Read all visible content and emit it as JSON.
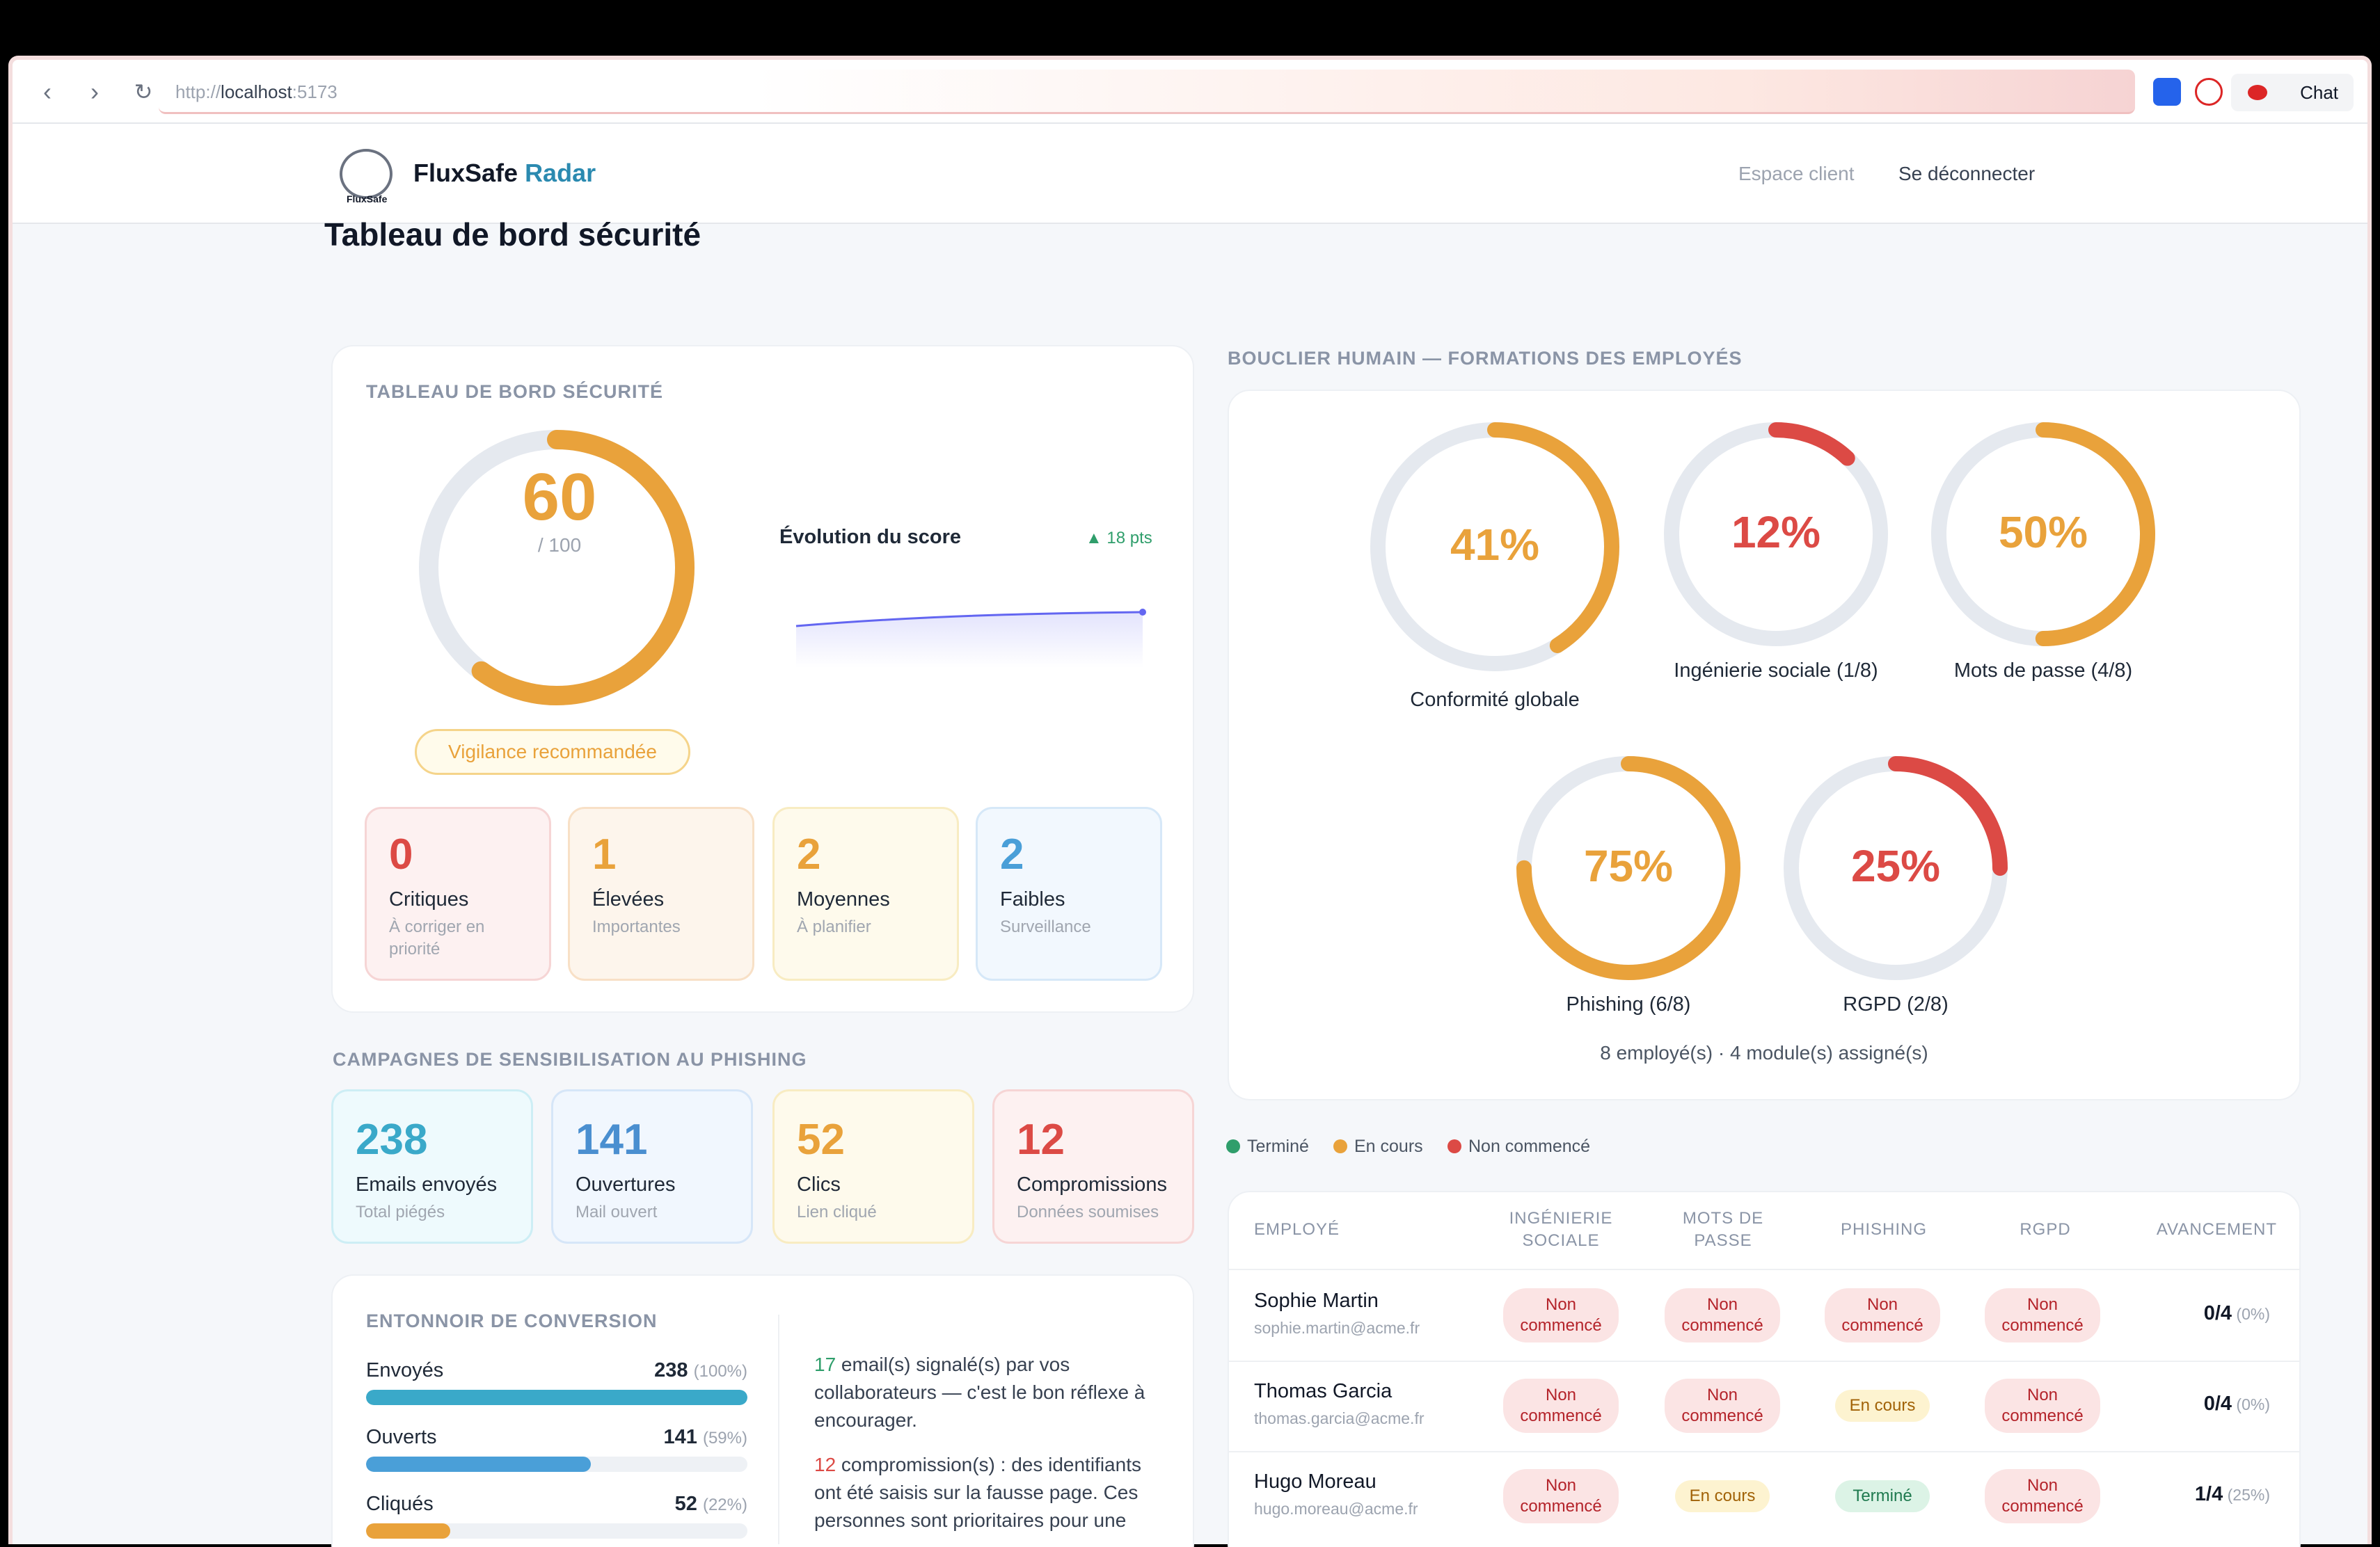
{
  "browser": {
    "url_scheme": "http://",
    "url_host": "localhost",
    "url_port": ":5173",
    "chat_label": "Chat"
  },
  "header": {
    "logo_text": "FluxSafe",
    "brand_main": "FluxSafe",
    "brand_accent": "Radar",
    "client_space": "Espace client",
    "logout": "Se déconnecter"
  },
  "page": {
    "title": "Tableau de bord sécurité"
  },
  "security": {
    "label": "TABLEAU DE BORD SÉCURITÉ",
    "score": "60",
    "score_max": "/ 100",
    "score_value": 60,
    "status": "Vigilance recommandée",
    "evolution_title": "Évolution du score",
    "evolution_delta": "▲ 18 pts",
    "severity": [
      {
        "count": "0",
        "title": "Critiques",
        "subtitle": "À corriger en priorité"
      },
      {
        "count": "1",
        "title": "Élevées",
        "subtitle": "Importantes"
      },
      {
        "count": "2",
        "title": "Moyennes",
        "subtitle": "À planifier"
      },
      {
        "count": "2",
        "title": "Faibles",
        "subtitle": "Surveillance"
      }
    ]
  },
  "campaigns": {
    "label": "CAMPAGNES DE SENSIBILISATION AU PHISHING",
    "stats": [
      {
        "count": "238",
        "title": "Emails envoyés",
        "subtitle": "Total piégés"
      },
      {
        "count": "141",
        "title": "Ouvertures",
        "subtitle": "Mail ouvert"
      },
      {
        "count": "52",
        "title": "Clics",
        "subtitle": "Lien cliqué"
      },
      {
        "count": "12",
        "title": "Compromissions",
        "subtitle": "Données soumises"
      }
    ]
  },
  "funnel": {
    "label": "ENTONNOIR DE CONVERSION",
    "rows": [
      {
        "label": "Envoyés",
        "value": "238",
        "pct": "(100%)",
        "fraction": 1.0
      },
      {
        "label": "Ouverts",
        "value": "141",
        "pct": "(59%)",
        "fraction": 0.59
      },
      {
        "label": "Cliqués",
        "value": "52",
        "pct": "(22%)",
        "fraction": 0.22
      }
    ],
    "insight1_num": "17",
    "insight1_text": " email(s) signalé(s) par vos collaborateurs — c'est le bon réflexe à encourager.",
    "insight2_num": "12",
    "insight2_text": " compromission(s) : des identifiants ont été saisis sur la fausse page. Ces personnes sont prioritaires pour une"
  },
  "training": {
    "label": "BOUCLIER HUMAIN — FORMATIONS DES EMPLOYÉS",
    "donuts": [
      {
        "pct": "41%",
        "value": 41,
        "label": "Conformité globale",
        "color": "#e9a23b"
      },
      {
        "pct": "12%",
        "value": 12,
        "label": "Ingénierie sociale (1/8)",
        "color": "#dc4a45"
      },
      {
        "pct": "50%",
        "value": 50,
        "label": "Mots de passe (4/8)",
        "color": "#e9a23b"
      },
      {
        "pct": "75%",
        "value": 75,
        "label": "Phishing (6/8)",
        "color": "#e9a23b"
      },
      {
        "pct": "25%",
        "value": 25,
        "label": "RGPD (2/8)",
        "color": "#dc4a45"
      }
    ],
    "summary": "8 employé(s) · 4 module(s) assigné(s)",
    "legend": [
      "Terminé",
      "En cours",
      "Non commencé"
    ]
  },
  "table": {
    "headers": [
      "EMPLOYÉ",
      "INGÉNIERIE SOCIALE",
      "MOTS DE PASSE",
      "PHISHING",
      "RGPD",
      "AVANCEMENT"
    ],
    "rows": [
      {
        "name": "Sophie Martin",
        "email": "sophie.martin@acme.fr",
        "statuses": [
          "Non commencé",
          "Non commencé",
          "Non commencé",
          "Non commencé"
        ],
        "progress": "0/4",
        "progress_pct": "(0%)"
      },
      {
        "name": "Thomas Garcia",
        "email": "thomas.garcia@acme.fr",
        "statuses": [
          "Non commencé",
          "Non commencé",
          "En cours",
          "Non commencé"
        ],
        "progress": "0/4",
        "progress_pct": "(0%)"
      },
      {
        "name": "Hugo Moreau",
        "email": "hugo.moreau@acme.fr",
        "statuses": [
          "Non commencé",
          "En cours",
          "Terminé",
          "Non commencé"
        ],
        "progress": "1/4",
        "progress_pct": "(25%)"
      }
    ]
  },
  "colors": {
    "orange": "#e9a23b",
    "red": "#dc4a45",
    "green": "#2f9e6b",
    "blue": "#4a9fd8",
    "cyan": "#3aa9c9"
  }
}
